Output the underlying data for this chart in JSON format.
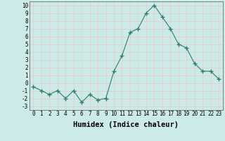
{
  "x": [
    0,
    1,
    2,
    3,
    4,
    5,
    6,
    7,
    8,
    9,
    10,
    11,
    12,
    13,
    14,
    15,
    16,
    17,
    18,
    19,
    20,
    21,
    22,
    23
  ],
  "y": [
    -0.5,
    -1.0,
    -1.5,
    -1.0,
    -2.0,
    -1.0,
    -2.5,
    -1.5,
    -2.2,
    -2.0,
    1.5,
    3.5,
    6.5,
    7.0,
    9.0,
    10.0,
    8.5,
    7.0,
    5.0,
    4.5,
    2.5,
    1.5,
    1.5,
    0.5
  ],
  "line_color": "#2e7d6e",
  "marker": "+",
  "marker_size": 4,
  "bg_color": "#cceae8",
  "grid_color": "#e8c8c8",
  "xlabel": "Humidex (Indice chaleur)",
  "xlim": [
    -0.5,
    23.5
  ],
  "ylim": [
    -3.5,
    10.5
  ],
  "yticks": [
    -3,
    -2,
    -1,
    0,
    1,
    2,
    3,
    4,
    5,
    6,
    7,
    8,
    9,
    10
  ],
  "xticks": [
    0,
    1,
    2,
    3,
    4,
    5,
    6,
    7,
    8,
    9,
    10,
    11,
    12,
    13,
    14,
    15,
    16,
    17,
    18,
    19,
    20,
    21,
    22,
    23
  ],
  "tick_label_fontsize": 5.5,
  "xlabel_fontsize": 7.5
}
